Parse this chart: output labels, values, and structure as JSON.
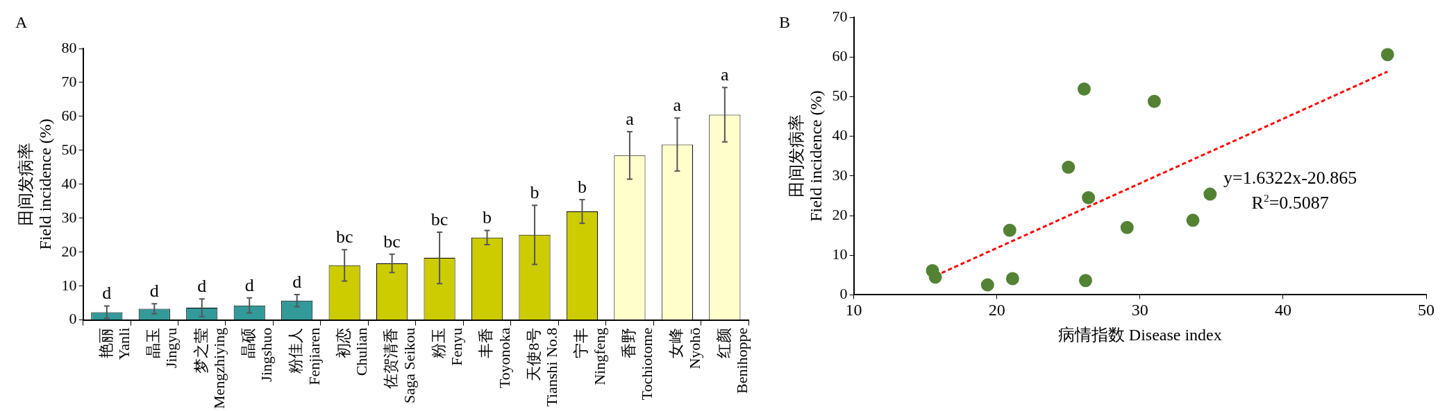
{
  "chart_data": [
    {
      "type": "bar",
      "title": "A",
      "ylabel": "田间发病率\nField incidence (%)",
      "categories": [
        "艳丽\nYanli",
        "晶玉\nJingyu",
        "梦之莹\nMengzhiying",
        "晶硕\nJingshuo",
        "粉佳人\nFenjiaren",
        "初恋\nChulian",
        "佐贺清香\nSaga Seikou",
        "粉玉\nFenyu",
        "丰香\nToyonoka",
        "天使8号\nTianshi No.8",
        "宁丰\nNingfeng",
        "香野\nTochiotome",
        "女峰\nNyohō",
        "红颜\nBenihoppe"
      ],
      "values": [
        2.3,
        3.3,
        3.6,
        4.3,
        5.7,
        16.1,
        16.7,
        18.3,
        24.3,
        25.1,
        32.0,
        48.5,
        51.7,
        60.5
      ],
      "errors": [
        1.8,
        1.5,
        2.6,
        2.2,
        1.8,
        4.6,
        2.7,
        7.6,
        2.1,
        8.7,
        3.5,
        7.0,
        7.8,
        8.0
      ],
      "colors": [
        "#339999",
        "#339999",
        "#339999",
        "#339999",
        "#339999",
        "#cccc00",
        "#cccc00",
        "#cccc00",
        "#cccc00",
        "#cccc00",
        "#cccc00",
        "#ffffcc",
        "#ffffcc",
        "#ffffcc"
      ],
      "ylim": [
        0,
        80
      ],
      "yticks": [
        0,
        10,
        20,
        30,
        40,
        50,
        60,
        70,
        80
      ],
      "grid": false,
      "annotations": [
        "d",
        "d",
        "d",
        "d",
        "d",
        "bc",
        "bc",
        "bc",
        "b",
        "b",
        "b",
        "a",
        "a",
        "a"
      ]
    },
    {
      "type": "scatter",
      "title": "B",
      "xlabel": "病情指数 Disease index",
      "ylabel": "田间发病率\nField incidence (%)",
      "series": [
        {
          "type": "scatter",
          "color": "#548235",
          "marker": "circle",
          "x": [
            15.5,
            15.7,
            19.35,
            20.9,
            21.1,
            25.0,
            26.1,
            26.2,
            26.4,
            29.1,
            31.0,
            33.7,
            34.9,
            47.3
          ],
          "values": [
            6.1,
            4.5,
            2.5,
            16.3,
            4.1,
            32.2,
            51.9,
            3.6,
            24.5,
            17.0,
            48.8,
            18.8,
            25.4,
            60.6
          ]
        },
        {
          "type": "line",
          "color": "#ff0000",
          "line_style": "dashed",
          "marker": "none",
          "x": [
            15.7,
            47.3
          ],
          "values": [
            4.8,
            56.3
          ]
        }
      ],
      "xlim": [
        10,
        50
      ],
      "xticks": [
        10,
        20,
        30,
        40,
        50
      ],
      "ylim": [
        0,
        70
      ],
      "yticks": [
        0,
        10,
        20,
        30,
        40,
        50,
        60,
        70
      ],
      "grid": false,
      "annotations": [
        "y=1.6322x-20.865",
        "R$^{2}$=0.5087"
      ]
    }
  ]
}
